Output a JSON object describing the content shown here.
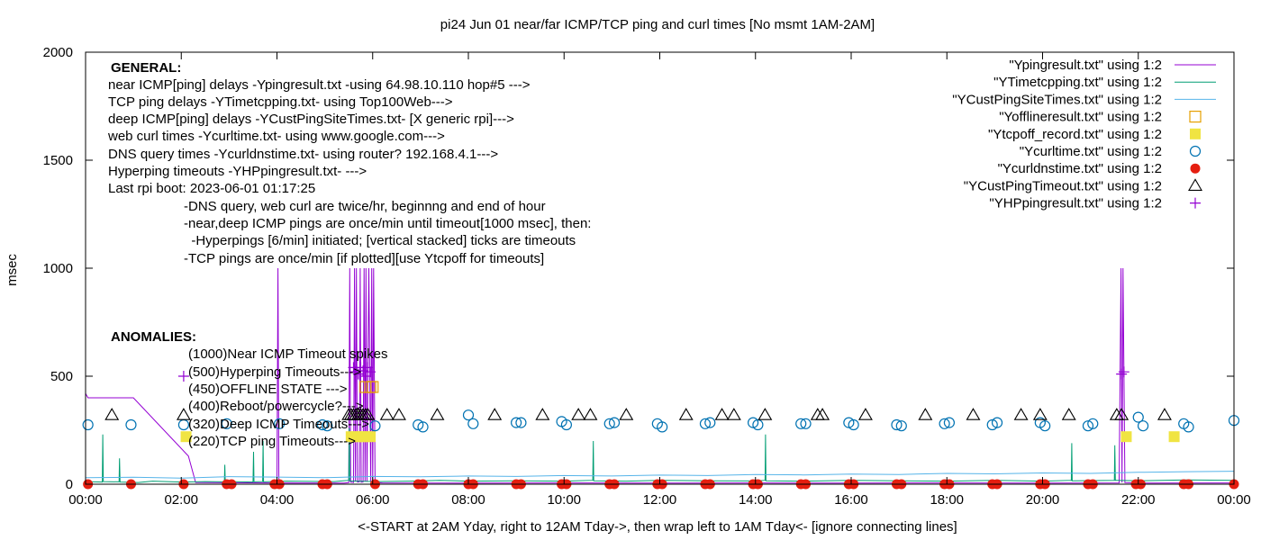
{
  "chart_data": {
    "type": "line",
    "title": "pi24 Jun 01  near/far ICMP/TCP ping and curl times [No msmt 1AM-2AM]",
    "xlabel": "<-START at 2AM Yday, right to 12AM Tday->, then wrap left to 1AM Tday<- [ignore connecting lines]",
    "ylabel": "msec",
    "xlim": [
      0,
      24
    ],
    "ylim": [
      0,
      2000
    ],
    "x_ticks": [
      {
        "v": 0,
        "label": "00:00"
      },
      {
        "v": 2,
        "label": "02:00"
      },
      {
        "v": 4,
        "label": "04:00"
      },
      {
        "v": 6,
        "label": "06:00"
      },
      {
        "v": 8,
        "label": "08:00"
      },
      {
        "v": 10,
        "label": "10:00"
      },
      {
        "v": 12,
        "label": "12:00"
      },
      {
        "v": 14,
        "label": "14:00"
      },
      {
        "v": 16,
        "label": "16:00"
      },
      {
        "v": 18,
        "label": "18:00"
      },
      {
        "v": 20,
        "label": "20:00"
      },
      {
        "v": 22,
        "label": "22:00"
      },
      {
        "v": 24,
        "label": "00:00"
      }
    ],
    "y_ticks": [
      {
        "v": 0,
        "label": "0"
      },
      {
        "v": 500,
        "label": "500"
      },
      {
        "v": 1000,
        "label": "1000"
      },
      {
        "v": 1500,
        "label": "1500"
      },
      {
        "v": 2000,
        "label": "2000"
      }
    ],
    "grid": false,
    "legend_position": "top-right",
    "legend": [
      {
        "label": "\"Ypingresult.txt\" using 1:2",
        "kind": "line",
        "color": "#9400d3"
      },
      {
        "label": "\"YTimetcpping.txt\" using 1:2",
        "kind": "line",
        "color": "#009e73"
      },
      {
        "label": "\"YCustPingSiteTimes.txt\" using 1:2",
        "kind": "line",
        "color": "#56b4e9"
      },
      {
        "label": "\"Yofflineresult.txt\" using 1:2",
        "kind": "square-open",
        "color": "#e69f00"
      },
      {
        "label": "\"Ytcpoff_record.txt\" using 1:2",
        "kind": "square-filled",
        "color": "#f0e442"
      },
      {
        "label": "\"Ycurltime.txt\" using 1:2",
        "kind": "circle-open",
        "color": "#0072b2"
      },
      {
        "label": "\"Ycurldnstime.txt\" using 1:2",
        "kind": "circle-filled",
        "color": "#e51e10"
      },
      {
        "label": "\"YCustPingTimeout.txt\" using 1:2",
        "kind": "triangle-open",
        "color": "#000000"
      },
      {
        "label": "\"YHPpingresult.txt\" using 1:2",
        "kind": "plus",
        "color": "#9400d3"
      }
    ],
    "notes": {
      "general_heading": "GENERAL:",
      "general_lines": [
        "near ICMP[ping] delays -Ypingresult.txt -using 64.98.10.110 hop#5 --->",
        "TCP ping delays -YTimetcpping.txt- using Top100Web--->",
        "deep ICMP[ping] delays -YCustPingSiteTimes.txt- [X generic rpi]--->",
        "web curl times -Ycurltime.txt- using www.google.com--->",
        "DNS query times -Ycurldnstime.txt- using router? 192.168.4.1--->",
        "Hyperping timeouts -YHPpingresult.txt- --->",
        "Last rpi boot: 2023-06-01 01:17:25"
      ],
      "detail_lines": [
        "-DNS query, web curl are twice/hr, beginnng and end of hour",
        "-near,deep ICMP pings are once/min until timeout[1000 msec], then:",
        "  -Hyperpings [6/min] initiated; [vertical stacked] ticks are timeouts",
        "-TCP pings are once/min [if plotted][use Ytcpoff for timeouts]"
      ],
      "anomalies_heading": "ANOMALIES:",
      "anomaly_lines": [
        "(1000)Near ICMP Timeout spikes",
        "(500)Hyperping Timeouts--->",
        "(450)OFFLINE STATE --->",
        "(400)Reboot/powercycle?--->",
        "(320)Deep ICMP Timeouts--->",
        "(220)TCP ping Timeouts--->"
      ]
    },
    "series": [
      {
        "name": "\"Ypingresult.txt\" using 1:2",
        "kind": "line",
        "color": "#9400d3",
        "x": [
          0,
          0.05,
          1,
          2.15,
          2.3,
          3.9,
          4.0,
          4.02,
          4.04,
          4.1,
          5.4,
          5.5,
          5.52,
          5.54,
          5.6,
          5.62,
          5.64,
          5.66,
          5.68,
          5.72,
          5.74,
          5.76,
          5.8,
          5.82,
          5.84,
          5.86,
          5.88,
          5.92,
          5.96,
          5.98,
          6.0,
          6.02,
          6.05,
          6.2,
          8,
          10,
          12,
          14,
          16,
          18,
          20,
          21.6,
          21.64,
          21.66,
          21.68,
          21.72,
          22,
          24
        ],
        "y": [
          420,
          400,
          400,
          130,
          8,
          6,
          5,
          1000,
          5,
          6,
          5,
          7,
          1000,
          9,
          8,
          1000,
          12,
          1000,
          10,
          11,
          1000,
          9,
          10,
          1000,
          12,
          1000,
          11,
          1000,
          10,
          1000,
          9,
          1000,
          8,
          6,
          5,
          6,
          5,
          6,
          5,
          6,
          5,
          6,
          1000,
          8,
          1000,
          7,
          5,
          6
        ]
      },
      {
        "name": "\"YTimetcpping.txt\" using 1:2",
        "kind": "line",
        "color": "#009e73",
        "x": [
          0,
          0.35,
          0.36,
          0.37,
          0.7,
          0.71,
          0.72,
          1.1,
          1.4,
          2.0,
          2.5,
          2.9,
          2.91,
          2.92,
          3.5,
          3.51,
          3.52,
          3.7,
          3.71,
          3.72,
          4.2,
          5.2,
          5.5,
          5.51,
          5.52,
          6.1,
          6.8,
          7.4,
          8.0,
          9.0,
          10.0,
          10.6,
          10.61,
          10.62,
          11.3,
          12.0,
          13.0,
          14.0,
          14.2,
          14.21,
          14.22,
          15.0,
          16.0,
          17.0,
          18.0,
          19.0,
          19.6,
          20.0,
          20.6,
          20.61,
          20.62,
          21.5,
          21.51,
          21.52,
          21.6,
          22.0,
          23.0,
          24.0
        ],
        "y": [
          12,
          10,
          230,
          12,
          11,
          120,
          10,
          8,
          14,
          10,
          12,
          11,
          90,
          12,
          10,
          150,
          11,
          12,
          200,
          11,
          14,
          12,
          18,
          260,
          15,
          12,
          14,
          18,
          14,
          16,
          14,
          18,
          200,
          16,
          14,
          18,
          16,
          15,
          18,
          230,
          16,
          14,
          18,
          16,
          14,
          18,
          16,
          14,
          18,
          190,
          16,
          18,
          180,
          18,
          18,
          16,
          20,
          18
        ]
      },
      {
        "name": "\"YCustPingSiteTimes.txt\" using 1:2",
        "kind": "line",
        "color": "#56b4e9",
        "x": [
          0,
          1,
          2,
          3,
          4,
          5,
          6,
          7,
          8,
          9,
          10,
          11,
          12,
          13,
          14,
          15,
          16,
          17,
          18,
          19,
          20,
          21,
          22,
          23,
          24
        ],
        "y": [
          30,
          32,
          28,
          35,
          33,
          30,
          36,
          34,
          38,
          36,
          40,
          38,
          42,
          40,
          45,
          43,
          47,
          45,
          50,
          48,
          52,
          50,
          55,
          58,
          60
        ]
      },
      {
        "name": "\"Yofflineresult.txt\" using 1:2",
        "kind": "square-open",
        "color": "#e69f00",
        "x": [
          5.85,
          5.95,
          6.0
        ],
        "y": [
          450,
          450,
          450
        ]
      },
      {
        "name": "\"Ytcpoff_record.txt\" using 1:2",
        "kind": "square-filled",
        "color": "#f0e442",
        "x": [
          2.1,
          5.55,
          5.65,
          5.75,
          5.85,
          5.95,
          21.75,
          22.75
        ],
        "y": [
          220,
          220,
          220,
          220,
          220,
          220,
          220,
          220
        ]
      },
      {
        "name": "\"Ycurltime.txt\" using 1:2",
        "kind": "circle-open",
        "color": "#0072b2",
        "x": [
          0.05,
          0.95,
          2.05,
          2.95,
          4.05,
          4.95,
          5.05,
          6.05,
          6.95,
          7.05,
          8.0,
          8.1,
          9.0,
          9.1,
          9.95,
          10.05,
          10.95,
          11.05,
          11.95,
          12.05,
          12.95,
          13.05,
          13.95,
          14.05,
          14.95,
          15.05,
          15.95,
          16.05,
          16.95,
          17.05,
          17.95,
          18.05,
          18.95,
          19.05,
          19.95,
          20.05,
          20.95,
          21.05,
          22.0,
          22.1,
          22.95,
          23.05,
          24.0
        ],
        "y": [
          275,
          275,
          275,
          280,
          280,
          275,
          270,
          270,
          275,
          265,
          320,
          280,
          285,
          285,
          290,
          275,
          280,
          285,
          280,
          265,
          280,
          285,
          285,
          275,
          280,
          280,
          285,
          275,
          275,
          270,
          280,
          285,
          275,
          285,
          285,
          270,
          270,
          280,
          310,
          270,
          280,
          265,
          295
        ]
      },
      {
        "name": "\"Ycurldnstime.txt\" using 1:2",
        "kind": "circle-filled",
        "color": "#e51e10",
        "x": [
          0.05,
          0.95,
          2.05,
          2.95,
          3.05,
          3.95,
          4.05,
          4.95,
          5.05,
          6.05,
          6.95,
          7.05,
          8.0,
          8.1,
          9.0,
          9.1,
          9.95,
          10.05,
          10.95,
          11.05,
          11.95,
          12.05,
          12.95,
          13.05,
          13.95,
          14.05,
          14.95,
          15.05,
          15.95,
          16.05,
          16.95,
          17.05,
          17.95,
          18.05,
          18.95,
          19.05,
          19.95,
          20.05,
          20.95,
          21.05,
          21.95,
          22.05,
          22.95,
          23.05,
          24.0
        ],
        "y": [
          0,
          0,
          0,
          0,
          0,
          0,
          0,
          0,
          0,
          0,
          0,
          0,
          0,
          0,
          0,
          0,
          0,
          0,
          0,
          0,
          0,
          0,
          0,
          0,
          0,
          0,
          0,
          0,
          0,
          0,
          0,
          0,
          0,
          0,
          0,
          0,
          0,
          0,
          0,
          0,
          0,
          0,
          0,
          0,
          0
        ]
      },
      {
        "name": "\"YCustPingTimeout.txt\" using 1:2",
        "kind": "triangle-open",
        "color": "#000000",
        "x": [
          0.55,
          2.05,
          5.5,
          5.55,
          5.6,
          5.65,
          5.7,
          5.75,
          5.8,
          5.85,
          5.9,
          6.3,
          6.55,
          7.35,
          8.55,
          9.55,
          10.3,
          10.55,
          11.3,
          12.55,
          13.3,
          13.55,
          14.2,
          15.3,
          15.4,
          16.3,
          17.55,
          18.55,
          19.55,
          19.95,
          20.55,
          21.55,
          21.65,
          22.55
        ],
        "y": [
          320,
          320,
          320,
          320,
          320,
          320,
          320,
          320,
          320,
          320,
          320,
          320,
          320,
          320,
          320,
          320,
          320,
          320,
          320,
          320,
          320,
          320,
          320,
          320,
          320,
          320,
          320,
          320,
          320,
          320,
          320,
          320,
          320,
          320
        ]
      },
      {
        "name": "\"YHPpingresult.txt\" using 1:2",
        "kind": "plus",
        "color": "#9400d3",
        "x": [
          2.05,
          5.6,
          5.65,
          5.7,
          5.75,
          5.8,
          5.85,
          5.9,
          5.95,
          21.65,
          21.7
        ],
        "y": [
          500,
          540,
          520,
          510,
          540,
          525,
          500,
          540,
          520,
          510,
          520
        ]
      }
    ]
  }
}
